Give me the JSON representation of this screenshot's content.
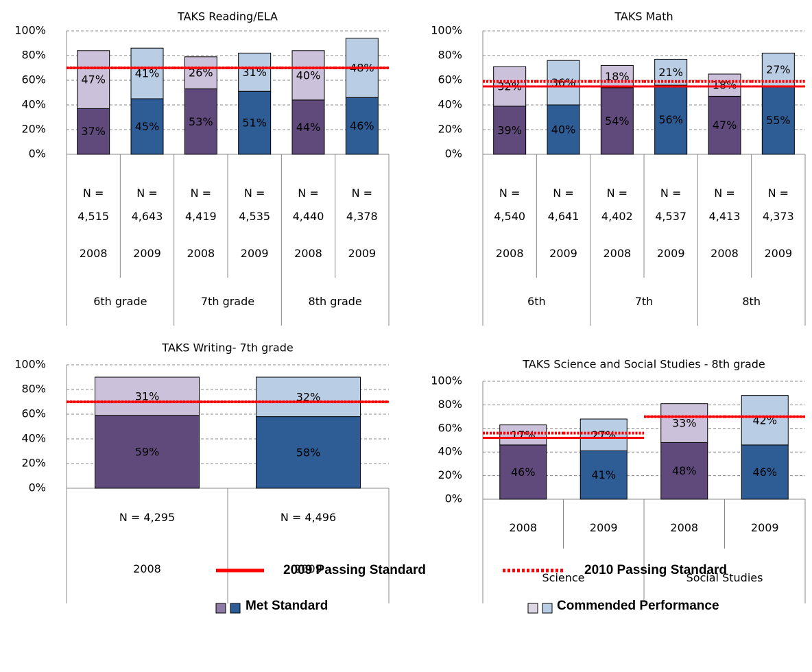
{
  "chart_data": [
    {
      "type": "bar",
      "stacked": true,
      "title": "TAKS Reading/ELA",
      "n_labels": [
        "N = 4,515",
        "N = 4,643",
        "N = 4,419",
        "N = 4,535",
        "N = 4,440",
        "N = 4,378"
      ],
      "categories": [
        "2008",
        "2009",
        "2008",
        "2009",
        "2008",
        "2009"
      ],
      "groups": [
        "6th grade",
        "7th grade",
        "8th grade"
      ],
      "series": [
        {
          "colors": [
            "#604a7b",
            "#2e5c94",
            "#604a7b",
            "#2e5c94",
            "#604a7b",
            "#2e5c94"
          ],
          "values": [
            37,
            45,
            53,
            51,
            44,
            46
          ],
          "value_labels": [
            "37%",
            "45%",
            "53%",
            "51%",
            "44%",
            "46%"
          ]
        },
        {
          "colors": [
            "#ccc1da",
            "#b9cde5",
            "#ccc1da",
            "#b9cde5",
            "#ccc1da",
            "#b9cde5"
          ],
          "values": [
            47,
            41,
            26,
            31,
            40,
            48
          ],
          "value_labels": [
            "47%",
            "41%",
            "26%",
            "31%",
            "40%",
            "48%"
          ]
        }
      ],
      "standard_2009": [
        70,
        70,
        70,
        70,
        70,
        70
      ],
      "standard_2010": [
        70,
        70,
        70,
        70,
        70,
        70
      ],
      "ylim": [
        0,
        100
      ],
      "yticks": [
        {
          "value": 0,
          "label": "0%"
        },
        {
          "value": 20,
          "label": "20%"
        },
        {
          "value": 40,
          "label": "40%"
        },
        {
          "value": 60,
          "label": "60%"
        },
        {
          "value": 80,
          "label": "80%"
        },
        {
          "value": 100,
          "label": "100%"
        }
      ],
      "grid": true
    },
    {
      "type": "bar",
      "stacked": true,
      "title": "TAKS Math",
      "n_labels": [
        "N = 4,540",
        "N = 4,641",
        "N = 4,402",
        "N = 4,537",
        "N = 4,413",
        "N = 4,373"
      ],
      "categories": [
        "2008",
        "2009",
        "2008",
        "2009",
        "2008",
        "2009"
      ],
      "groups": [
        "6th",
        "7th",
        "8th"
      ],
      "series": [
        {
          "colors": [
            "#604a7b",
            "#2e5c94",
            "#604a7b",
            "#2e5c94",
            "#604a7b",
            "#2e5c94"
          ],
          "values": [
            39,
            40,
            54,
            56,
            47,
            55
          ],
          "value_labels": [
            "39%",
            "40%",
            "54%",
            "56%",
            "47%",
            "55%"
          ]
        },
        {
          "colors": [
            "#ccc1da",
            "#b9cde5",
            "#ccc1da",
            "#b9cde5",
            "#ccc1da",
            "#b9cde5"
          ],
          "values": [
            32,
            36,
            18,
            21,
            18,
            27
          ],
          "value_labels": [
            "32%",
            "36%",
            "18%",
            "21%",
            "18%",
            "27%"
          ]
        }
      ],
      "standard_2009": [
        55,
        55,
        55,
        55,
        55,
        55
      ],
      "standard_2010": [
        59,
        59,
        59,
        59,
        59,
        59
      ],
      "ylim": [
        0,
        100
      ],
      "yticks": [
        {
          "value": 0,
          "label": "0%"
        },
        {
          "value": 20,
          "label": "20%"
        },
        {
          "value": 40,
          "label": "40%"
        },
        {
          "value": 60,
          "label": "60%"
        },
        {
          "value": 80,
          "label": "80%"
        },
        {
          "value": 100,
          "label": "100%"
        }
      ],
      "grid": true
    },
    {
      "type": "bar",
      "stacked": true,
      "title": "TAKS Writing- 7th grade",
      "n_labels": [
        "N = 4,295",
        "N = 4,496"
      ],
      "categories": [
        "2008",
        "2009"
      ],
      "series": [
        {
          "colors": [
            "#604a7b",
            "#2e5c94"
          ],
          "values": [
            59,
            58
          ],
          "value_labels": [
            "59%",
            "58%"
          ]
        },
        {
          "colors": [
            "#ccc1da",
            "#b9cde5"
          ],
          "values": [
            31,
            32
          ],
          "value_labels": [
            "31%",
            "32%"
          ]
        }
      ],
      "standard_2009": [
        70,
        70
      ],
      "standard_2010": [
        70,
        70
      ],
      "ylim": [
        0,
        100
      ],
      "yticks": [
        {
          "value": 0,
          "label": "0%"
        },
        {
          "value": 20,
          "label": "20%"
        },
        {
          "value": 40,
          "label": "40%"
        },
        {
          "value": 60,
          "label": "60%"
        },
        {
          "value": 80,
          "label": "80%"
        },
        {
          "value": 100,
          "label": "100%"
        }
      ],
      "grid": true
    },
    {
      "type": "bar",
      "stacked": true,
      "title": "TAKS Science and Social Studies - 8th grade",
      "categories": [
        "2008",
        "2009",
        "2008",
        "2009"
      ],
      "groups": [
        "Science",
        "Social Studies"
      ],
      "series": [
        {
          "colors": [
            "#604a7b",
            "#2e5c94",
            "#604a7b",
            "#2e5c94"
          ],
          "values": [
            46,
            41,
            48,
            46
          ],
          "value_labels": [
            "46%",
            "41%",
            "48%",
            "46%"
          ]
        },
        {
          "colors": [
            "#ccc1da",
            "#b9cde5",
            "#ccc1da",
            "#b9cde5"
          ],
          "values": [
            17,
            27,
            33,
            42
          ],
          "value_labels": [
            "17%",
            "27%",
            "33%",
            "42%"
          ]
        }
      ],
      "standard_2009": [
        52,
        52,
        70,
        70
      ],
      "standard_2010": [
        56,
        56,
        70,
        70
      ],
      "ylim": [
        0,
        100
      ],
      "yticks": [
        {
          "value": 0,
          "label": "0%"
        },
        {
          "value": 20,
          "label": "20%"
        },
        {
          "value": 40,
          "label": "40%"
        },
        {
          "value": 60,
          "label": "60%"
        },
        {
          "value": 80,
          "label": "80%"
        },
        {
          "value": 100,
          "label": "100%"
        }
      ],
      "grid": true
    }
  ],
  "legend": {
    "standards": [
      {
        "name": "2009 Passing Standard",
        "color": "#ff0000",
        "style": "solid"
      },
      {
        "name": "2010 Passing Standard",
        "color": "#ff0000",
        "style": "dotted"
      }
    ],
    "series": [
      {
        "name": "Met Standard",
        "colors": [
          "#8f7ca6",
          "#2e5c94"
        ]
      },
      {
        "name": "Commended Performance",
        "colors": [
          "#dcd6e4",
          "#b9cde5"
        ]
      }
    ]
  }
}
